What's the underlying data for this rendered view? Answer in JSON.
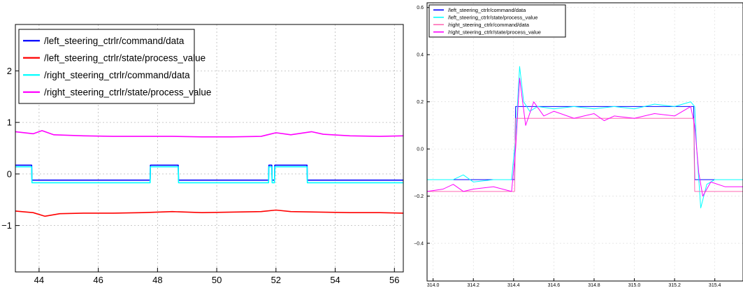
{
  "chart_data": [
    {
      "type": "line",
      "title": "",
      "xlabel": "",
      "ylabel": "",
      "xlim": [
        43.2,
        56.3
      ],
      "ylim": [
        -1.9,
        2.9
      ],
      "x_ticks": [
        "44",
        "46",
        "48",
        "50",
        "52",
        "54",
        "56"
      ],
      "y_ticks": [
        "2",
        "1",
        "0",
        "−1"
      ],
      "grid": true,
      "legend_position": "top-left",
      "series": [
        {
          "name": "/left_steering_ctrlr/command/data",
          "color": "#0000ff",
          "points": [
            [
              43.2,
              0.17
            ],
            [
              43.75,
              0.17
            ],
            [
              43.76,
              -0.12
            ],
            [
              47.75,
              -0.12
            ],
            [
              47.76,
              0.17
            ],
            [
              48.7,
              0.17
            ],
            [
              48.71,
              -0.12
            ],
            [
              51.75,
              -0.12
            ],
            [
              51.76,
              0.17
            ],
            [
              51.86,
              0.17
            ],
            [
              51.87,
              -0.12
            ],
            [
              51.95,
              -0.12
            ],
            [
              51.96,
              0.17
            ],
            [
              53.05,
              0.17
            ],
            [
              53.06,
              -0.12
            ],
            [
              56.3,
              -0.12
            ]
          ]
        },
        {
          "name": "/left_steering_ctrlr/state/process_value",
          "color": "#ff0000",
          "points": [
            [
              43.2,
              -0.72
            ],
            [
              43.8,
              -0.75
            ],
            [
              44.2,
              -0.82
            ],
            [
              44.7,
              -0.77
            ],
            [
              45.5,
              -0.76
            ],
            [
              46.5,
              -0.76
            ],
            [
              47.5,
              -0.75
            ],
            [
              48.5,
              -0.73
            ],
            [
              49.5,
              -0.75
            ],
            [
              50.5,
              -0.74
            ],
            [
              51.5,
              -0.73
            ],
            [
              52.0,
              -0.7
            ],
            [
              52.5,
              -0.73
            ],
            [
              53.5,
              -0.74
            ],
            [
              54.5,
              -0.75
            ],
            [
              55.5,
              -0.75
            ],
            [
              56.3,
              -0.76
            ]
          ]
        },
        {
          "name": "/right_steering_ctrlr/command/data",
          "color": "#00ffff",
          "points": [
            [
              43.2,
              0.14
            ],
            [
              43.75,
              0.14
            ],
            [
              43.76,
              -0.17
            ],
            [
              47.75,
              -0.17
            ],
            [
              47.76,
              0.14
            ],
            [
              48.7,
              0.14
            ],
            [
              48.71,
              -0.17
            ],
            [
              51.75,
              -0.17
            ],
            [
              51.76,
              0.14
            ],
            [
              51.86,
              0.14
            ],
            [
              51.87,
              -0.17
            ],
            [
              51.95,
              -0.17
            ],
            [
              51.96,
              0.14
            ],
            [
              53.05,
              0.14
            ],
            [
              53.06,
              -0.17
            ],
            [
              56.3,
              -0.17
            ]
          ]
        },
        {
          "name": "/right_steering_ctrlr/state/process_value",
          "color": "#ff00ff",
          "points": [
            [
              43.2,
              0.82
            ],
            [
              43.8,
              0.78
            ],
            [
              44.1,
              0.84
            ],
            [
              44.5,
              0.76
            ],
            [
              45.5,
              0.74
            ],
            [
              46.5,
              0.73
            ],
            [
              47.5,
              0.73
            ],
            [
              48.5,
              0.73
            ],
            [
              49.5,
              0.72
            ],
            [
              50.5,
              0.72
            ],
            [
              51.5,
              0.73
            ],
            [
              52.0,
              0.8
            ],
            [
              52.5,
              0.76
            ],
            [
              53.2,
              0.82
            ],
            [
              53.6,
              0.77
            ],
            [
              54.5,
              0.74
            ],
            [
              55.5,
              0.73
            ],
            [
              56.3,
              0.74
            ]
          ]
        }
      ]
    },
    {
      "type": "line",
      "title": "",
      "xlabel": "",
      "ylabel": "",
      "xlim": [
        313.97,
        315.54
      ],
      "ylim": [
        -0.56,
        0.62
      ],
      "x_ticks": [
        "314.0",
        "314.2",
        "314.4",
        "314.6",
        "314.8",
        "315.0",
        "315.2",
        "315.4"
      ],
      "y_ticks": [
        "0.6",
        "0.4",
        "0.2",
        "0.0",
        "−0.2",
        "−0.4"
      ],
      "grid": true,
      "legend_position": "top-left",
      "series": [
        {
          "name": "/left_steering_ctrlr/command/data",
          "color": "#0000ff",
          "points": [
            [
              313.97,
              -0.13
            ],
            [
              314.405,
              -0.13
            ],
            [
              314.41,
              0.18
            ],
            [
              315.295,
              0.18
            ],
            [
              315.3,
              -0.13
            ],
            [
              315.54,
              -0.13
            ]
          ]
        },
        {
          "name": "/left_steering_ctrlr/state/process_value",
          "color": "#00ffff",
          "points": [
            [
              313.97,
              -0.13
            ],
            [
              314.1,
              -0.13
            ],
            [
              314.15,
              -0.11
            ],
            [
              314.2,
              -0.14
            ],
            [
              314.3,
              -0.13
            ],
            [
              314.39,
              -0.13
            ],
            [
              314.41,
              0.05
            ],
            [
              314.43,
              0.35
            ],
            [
              314.45,
              0.2
            ],
            [
              314.48,
              0.16
            ],
            [
              314.52,
              0.18
            ],
            [
              314.6,
              0.17
            ],
            [
              314.7,
              0.18
            ],
            [
              314.8,
              0.17
            ],
            [
              314.9,
              0.18
            ],
            [
              315.0,
              0.17
            ],
            [
              315.1,
              0.19
            ],
            [
              315.2,
              0.18
            ],
            [
              315.28,
              0.2
            ],
            [
              315.3,
              0.18
            ],
            [
              315.31,
              0.0
            ],
            [
              315.33,
              -0.25
            ],
            [
              315.36,
              -0.15
            ],
            [
              315.4,
              -0.13
            ],
            [
              315.54,
              -0.13
            ]
          ]
        },
        {
          "name": "/right_steering_ctrlr/command/data",
          "color": "#ff69b4",
          "points": [
            [
              313.97,
              -0.18
            ],
            [
              314.405,
              -0.18
            ],
            [
              314.41,
              0.13
            ],
            [
              315.295,
              0.13
            ],
            [
              315.3,
              -0.18
            ],
            [
              315.54,
              -0.18
            ]
          ]
        },
        {
          "name": "/right_steering_ctrlr/state/process_value",
          "color": "#ff00ff",
          "points": [
            [
              313.97,
              -0.18
            ],
            [
              314.05,
              -0.17
            ],
            [
              314.1,
              -0.15
            ],
            [
              314.15,
              -0.18
            ],
            [
              314.2,
              -0.17
            ],
            [
              314.3,
              -0.16
            ],
            [
              314.39,
              -0.18
            ],
            [
              314.41,
              0.0
            ],
            [
              314.43,
              0.3
            ],
            [
              314.46,
              0.1
            ],
            [
              314.5,
              0.2
            ],
            [
              314.55,
              0.14
            ],
            [
              314.6,
              0.16
            ],
            [
              314.7,
              0.13
            ],
            [
              314.8,
              0.15
            ],
            [
              314.85,
              0.12
            ],
            [
              314.9,
              0.14
            ],
            [
              315.0,
              0.13
            ],
            [
              315.1,
              0.15
            ],
            [
              315.2,
              0.14
            ],
            [
              315.28,
              0.18
            ],
            [
              315.3,
              0.1
            ],
            [
              315.32,
              -0.1
            ],
            [
              315.34,
              -0.2
            ],
            [
              315.38,
              -0.14
            ],
            [
              315.45,
              -0.16
            ],
            [
              315.54,
              -0.16
            ]
          ]
        }
      ]
    }
  ]
}
